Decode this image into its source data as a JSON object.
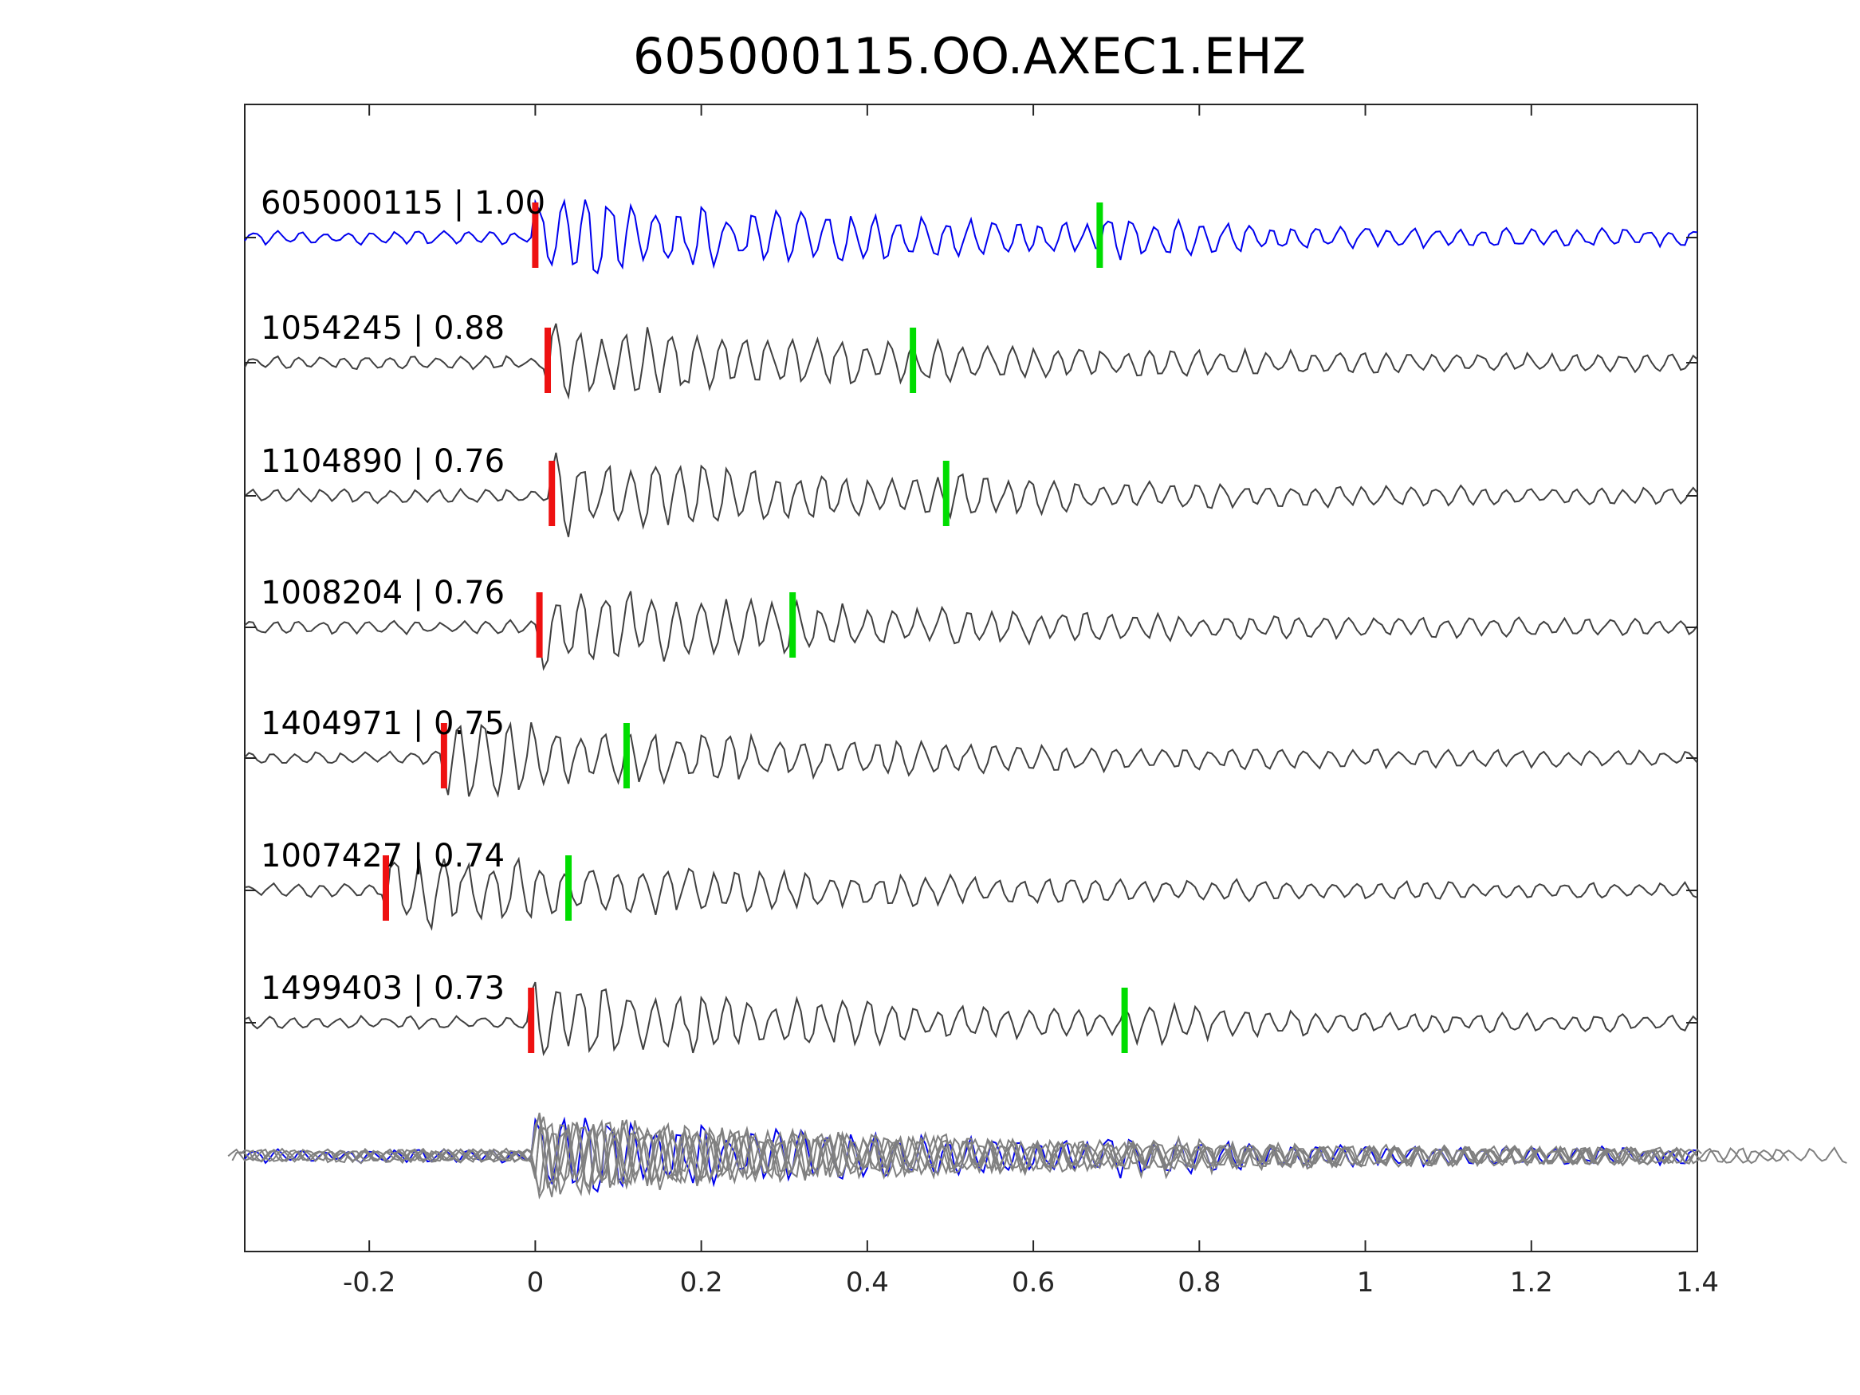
{
  "chart_data": {
    "type": "line",
    "title": "605000115.OO.AXEC1.EHZ",
    "xlabel": "",
    "ylabel": "",
    "xlim": [
      -0.35,
      1.4
    ],
    "xticks": [
      -0.2,
      0,
      0.2,
      0.4,
      0.6,
      0.8,
      1,
      1.2,
      1.4
    ],
    "xtick_labels": [
      "-0.2",
      "0",
      "0.2",
      "0.4",
      "0.6",
      "0.8",
      "1",
      "1.2",
      "1.4"
    ],
    "grid": false,
    "legend": "none",
    "colors": {
      "reference": "#0000ee",
      "trace": "#404040",
      "overlay": "#808080",
      "p_pick": "#ee1111",
      "s_pick": "#00dd00"
    },
    "series": [
      {
        "id": "605000115",
        "label": "605000115 | 1.00",
        "correlation": 1.0,
        "p_pick": 0.0,
        "s_pick": 0.68,
        "reference": true
      },
      {
        "id": "1054245",
        "label": "1054245 | 0.88",
        "correlation": 0.88,
        "p_pick": 0.015,
        "s_pick": 0.455
      },
      {
        "id": "1104890",
        "label": "1104890 | 0.76",
        "correlation": 0.76,
        "p_pick": 0.02,
        "s_pick": 0.495
      },
      {
        "id": "1008204",
        "label": "1008204 | 0.76",
        "correlation": 0.76,
        "p_pick": 0.005,
        "s_pick": 0.31
      },
      {
        "id": "1404971",
        "label": "1404971 | 0.75",
        "correlation": 0.75,
        "p_pick": -0.11,
        "s_pick": 0.11
      },
      {
        "id": "1007427",
        "label": "1007427 | 0.74",
        "correlation": 0.74,
        "p_pick": -0.18,
        "s_pick": 0.04
      },
      {
        "id": "1499403",
        "label": "1499403 | 0.73",
        "correlation": 0.73,
        "p_pick": -0.005,
        "s_pick": 0.71
      }
    ]
  }
}
